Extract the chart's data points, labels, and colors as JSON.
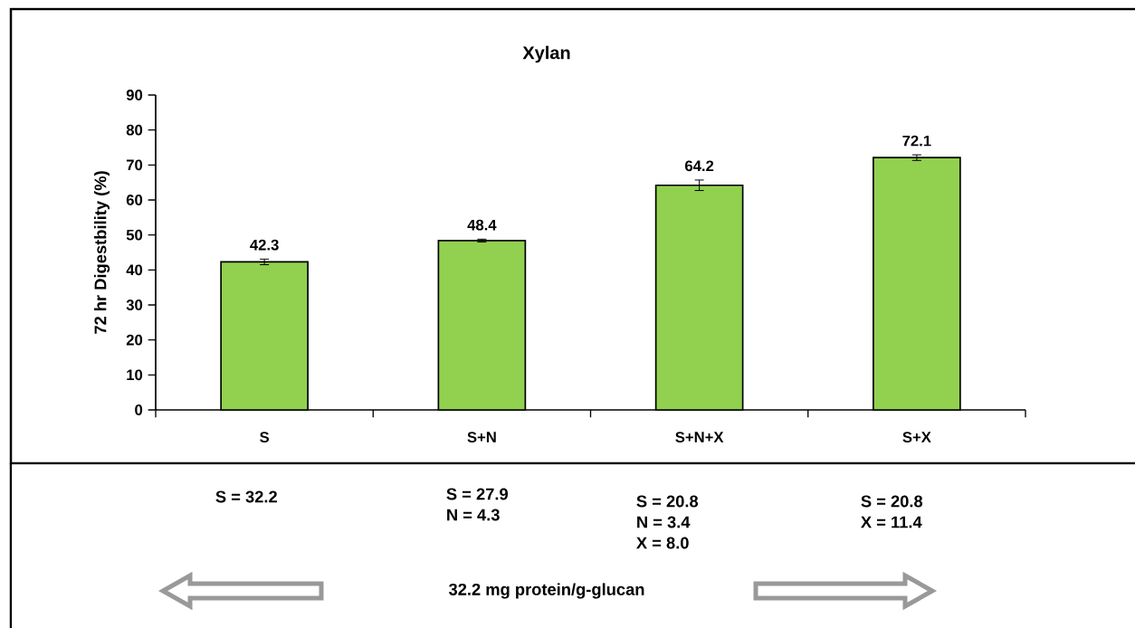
{
  "chart_data": {
    "type": "bar",
    "title": "Xylan",
    "ylabel": "72 hr Digestbility (%)",
    "categories": [
      "S",
      "S+N",
      "S+N+X",
      "S+X"
    ],
    "values": [
      42.3,
      48.4,
      64.2,
      72.1
    ],
    "errors": [
      0.8,
      0.4,
      1.5,
      0.8
    ],
    "color": "#92d050",
    "ylim": [
      0,
      90
    ],
    "yticks": [
      0,
      10,
      20,
      30,
      40,
      50,
      60,
      70,
      80,
      90
    ],
    "data_labels": true,
    "annotations": [
      "S = 32.2",
      "S = 27.9",
      "N = 4.3",
      "S = 20.8",
      "N = 3.4",
      "X = 8.0",
      "S =  20.8",
      "X = 11.4",
      "32.2 mg protein/g-glucan"
    ]
  }
}
